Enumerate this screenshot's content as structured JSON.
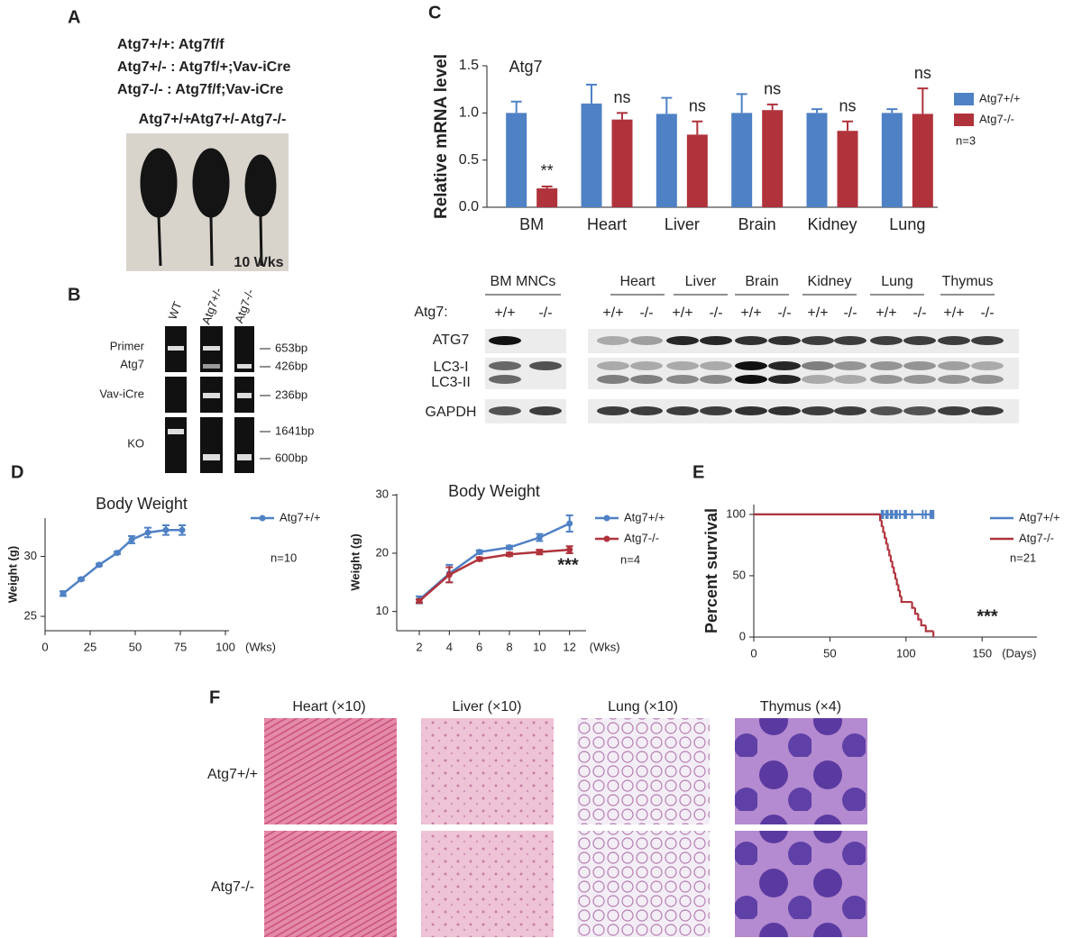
{
  "panel_labels": [
    "A",
    "B",
    "C",
    "D",
    "E",
    "F"
  ],
  "panel_a": {
    "genotypes": [
      "Atg7+/+: Atg7f/f",
      "Atg7+/- : Atg7f/+;Vav-iCre",
      "Atg7-/- : Atg7f/f;Vav-iCre"
    ],
    "mice": [
      "Atg7+/+",
      "Atg7+/-",
      "Atg7-/-"
    ],
    "age": "10 Wks"
  },
  "panel_b": {
    "lanes": [
      "WT",
      "Atg7+/-",
      "Atg7-/-"
    ],
    "rows": [
      "Primer",
      "Atg7",
      "Vav-iCre",
      "KO"
    ],
    "sizes": [
      "653bp",
      "426bp",
      "236bp",
      "1641bp",
      "600bp"
    ]
  },
  "panel_c_blot": {
    "groups": [
      "BM MNCs",
      "Heart",
      "Liver",
      "Brain",
      "Kidney",
      "Lung",
      "Thymus"
    ],
    "genotype_label": "Atg7:",
    "genotypes": [
      "+/+",
      "-/-",
      "+/+",
      "-/-",
      "+/+",
      "-/-",
      "+/+",
      "-/-",
      "+/+",
      "-/-",
      "+/+",
      "-/-",
      "+/+",
      "-/-"
    ],
    "rows": [
      "ATG7",
      "LC3-I",
      "LC3-II",
      "GAPDH"
    ]
  },
  "panel_f": {
    "columns": [
      "Heart (×10)",
      "Liver (×10)",
      "Lung (×10)",
      "Thymus (×4)"
    ],
    "rows": [
      "Atg7+/+",
      "Atg7-/-"
    ]
  },
  "chart_data": [
    {
      "type": "bar",
      "title": "Atg7",
      "y_label": "Relative mRNA level",
      "categories": [
        "BM",
        "Heart",
        "Liver",
        "Brain",
        "Kidney",
        "Lung"
      ],
      "series": [
        {
          "name": "Atg7+/+",
          "color": "#4f81c5",
          "values": [
            1.0,
            1.1,
            0.99,
            1.0,
            1.0,
            1.0
          ],
          "errors": [
            0.12,
            0.2,
            0.17,
            0.2,
            0.04,
            0.04
          ]
        },
        {
          "name": "Atg7-/-",
          "color": "#b0333c",
          "values": [
            0.2,
            0.93,
            0.77,
            1.03,
            0.81,
            0.99
          ],
          "errors": [
            0.02,
            0.07,
            0.14,
            0.06,
            0.1,
            0.27
          ]
        }
      ],
      "annotations": [
        "**",
        "ns",
        "ns",
        "ns",
        "ns",
        "ns"
      ],
      "note": "n=3",
      "ylim": [
        0,
        1.5
      ],
      "yticks": [
        {
          "value": 0,
          "label": "0.0"
        },
        0.5,
        {
          "value": 1,
          "label": "1.0"
        },
        1.5
      ]
    },
    {
      "type": "line",
      "title": "Body Weight",
      "y_label": "Weight (g)",
      "x_unit": "(Wks)",
      "x": [
        10,
        20,
        30,
        40,
        48,
        57,
        67,
        76
      ],
      "series": [
        {
          "name": "Atg7+/+",
          "color": "#4f81c5",
          "values": [
            26.9,
            28.1,
            29.3,
            30.3,
            31.4,
            32.0,
            32.2,
            32.2
          ],
          "errors": [
            0.2,
            0.1,
            0.1,
            0.1,
            0.3,
            0.4,
            0.4,
            0.4
          ]
        }
      ],
      "note": "n=10",
      "xlim": [
        0,
        102
      ],
      "xticks": [
        0,
        25,
        50,
        75,
        100
      ],
      "ylim": [
        23.8,
        33.2
      ],
      "yticks": [
        25,
        30
      ]
    },
    {
      "type": "line",
      "title": "Body Weight",
      "y_label": "Weight (g)",
      "x_unit": "(Wks)",
      "x": [
        2,
        4,
        6,
        8,
        10,
        12
      ],
      "series": [
        {
          "name": "Atg7+/+",
          "color": "#4f81c5",
          "values": [
            12,
            16.5,
            20.2,
            21,
            22.7,
            25.1
          ],
          "errors": [
            0.6,
            1.5,
            0.3,
            0.3,
            0.6,
            1.4
          ]
        },
        {
          "name": "Atg7-/-",
          "color": "#b0333c",
          "values": [
            11.8,
            16.3,
            19,
            19.8,
            20.2,
            20.6
          ],
          "errors": [
            0.3,
            1.3,
            0.3,
            0.3,
            0.4,
            0.6
          ]
        }
      ],
      "annotation": "***",
      "note": "n=4",
      "xlim": [
        0.5,
        13.1
      ],
      "xticks": [
        2,
        4,
        6,
        8,
        10,
        12
      ],
      "ylim": [
        6.7,
        30.2
      ],
      "yticks": [
        10,
        20,
        30
      ]
    },
    {
      "type": "survival",
      "y_label": "Percent survival",
      "x_unit": "(Days)",
      "series": [
        {
          "name": "Atg7+/+",
          "color": "#4f81c5",
          "x": [
            0,
            118
          ],
          "values": [
            100,
            100
          ],
          "censored_x": [
            84,
            85,
            87,
            88,
            90,
            91,
            93,
            94,
            96,
            99,
            100,
            104,
            111,
            113,
            116,
            117,
            118
          ]
        },
        {
          "name": "Atg7-/-",
          "color": "#b0333c",
          "x": [
            0,
            83,
            84,
            85,
            86,
            87,
            88,
            89,
            90,
            91,
            92,
            93,
            94,
            95,
            96,
            97,
            104,
            106,
            108,
            110,
            113,
            118
          ],
          "values": [
            100,
            95.2,
            90.5,
            85.7,
            81,
            76.2,
            71.4,
            66.7,
            61.9,
            57.1,
            52.4,
            47.6,
            42.9,
            38.1,
            33.3,
            28.6,
            23.8,
            19,
            14.3,
            9.5,
            4.8,
            0
          ]
        }
      ],
      "annotation": "***",
      "note": "n=21",
      "xlim": [
        0,
        186
      ],
      "xticks": [
        0,
        50,
        100,
        150
      ],
      "ylim": [
        0,
        108
      ],
      "yticks": [
        0,
        50,
        100
      ]
    }
  ]
}
